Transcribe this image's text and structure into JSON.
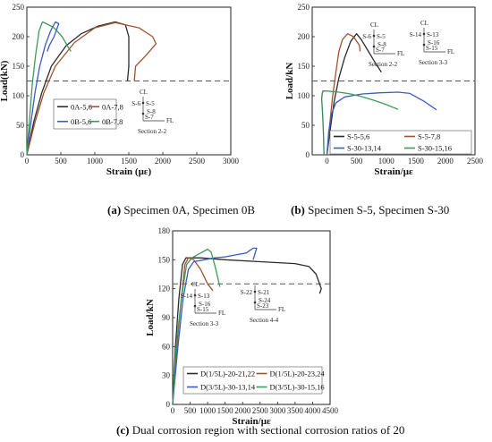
{
  "chart_data": [
    {
      "type": "line",
      "xlabel": "Strain (με)",
      "ylabel": "Load(kN)",
      "xlim": [
        0,
        3000
      ],
      "ylim": [
        0,
        250
      ],
      "xticks": [
        "0",
        "500",
        "1000",
        "1500",
        "2000",
        "2500",
        "3000"
      ],
      "yticks": [
        "0",
        "50",
        "100",
        "150",
        "200",
        "250"
      ],
      "reference_y": 125,
      "legend_position": "center",
      "caption_letter": "(a)",
      "caption_text": " Specimen 0A, Specimen 0B",
      "section": {
        "cl": "CL",
        "labels": [
          "S-6",
          "S-5",
          "S-8",
          "S-7"
        ],
        "fl": "FL",
        "title": "Section 2-2"
      },
      "series": [
        {
          "name": "0A-5,6",
          "color": "#2b2b2b",
          "points": [
            [
              0,
              0
            ],
            [
              100,
              55
            ],
            [
              220,
              105
            ],
            [
              360,
              150
            ],
            [
              580,
              185
            ],
            [
              800,
              205
            ],
            [
              1050,
              218
            ],
            [
              1300,
              225
            ],
            [
              1450,
              220
            ],
            [
              1500,
              200
            ],
            [
              1500,
              150
            ],
            [
              1480,
              125
            ]
          ]
        },
        {
          "name": "0A-7,8",
          "color": "#a0522d",
          "points": [
            [
              0,
              0
            ],
            [
              120,
              55
            ],
            [
              250,
              105
            ],
            [
              420,
              150
            ],
            [
              700,
              190
            ],
            [
              1000,
              215
            ],
            [
              1300,
              224
            ],
            [
              1650,
              215
            ],
            [
              1850,
              200
            ],
            [
              1900,
              188
            ],
            [
              1750,
              168
            ],
            [
              1600,
              150
            ],
            [
              1580,
              125
            ]
          ]
        },
        {
          "name": "0B-5,6",
          "color": "#3a5bc7",
          "points": [
            [
              0,
              0
            ],
            [
              60,
              55
            ],
            [
              120,
              105
            ],
            [
              190,
              150
            ],
            [
              270,
              185
            ],
            [
              350,
              210
            ],
            [
              420,
              225
            ],
            [
              470,
              222
            ],
            [
              400,
              200
            ],
            [
              330,
              185
            ],
            [
              300,
              175
            ]
          ]
        },
        {
          "name": "0B-7,8",
          "color": "#3f9a5a",
          "points": [
            [
              0,
              0
            ],
            [
              40,
              60
            ],
            [
              80,
              120
            ],
            [
              130,
              170
            ],
            [
              180,
              210
            ],
            [
              230,
              225
            ],
            [
              290,
              222
            ],
            [
              400,
              215
            ],
            [
              520,
              200
            ],
            [
              620,
              180
            ],
            [
              650,
              175
            ]
          ]
        }
      ]
    },
    {
      "type": "line",
      "xlabel": "Strain/με",
      "ylabel": "Load/kN",
      "xlim": [
        -250,
        2500
      ],
      "ylim": [
        0,
        250
      ],
      "xticks": [
        "0",
        "500",
        "1000",
        "1500",
        "2000",
        "2500"
      ],
      "yticks": [
        "0",
        "50",
        "100",
        "150",
        "200",
        "250"
      ],
      "reference_y": 125,
      "legend_position": "bottom",
      "caption_letter": "(b)",
      "caption_text": " Specimen S-5, Specimen S-30",
      "section_a": {
        "cl": "CL",
        "labels": [
          "S-6",
          "S-5",
          "S-8",
          "S-7"
        ],
        "fl": "FL",
        "title": "Section 2-2"
      },
      "section_b": {
        "cl": "CL",
        "labels": [
          "S-14",
          "S-13",
          "S-16",
          "S-15"
        ],
        "fl": "FL",
        "title": "Section 3-3"
      },
      "series": [
        {
          "name": "S-5-5,6",
          "color": "#2b2b2b",
          "points": [
            [
              0,
              0
            ],
            [
              50,
              40
            ],
            [
              120,
              90
            ],
            [
              200,
              130
            ],
            [
              300,
              165
            ],
            [
              400,
              192
            ],
            [
              500,
              205
            ],
            [
              580,
              195
            ],
            [
              700,
              175
            ],
            [
              820,
              155
            ],
            [
              920,
              140
            ]
          ]
        },
        {
          "name": "S-5-7,8",
          "color": "#a0522d",
          "points": [
            [
              0,
              0
            ],
            [
              40,
              45
            ],
            [
              90,
              95
            ],
            [
              150,
              140
            ],
            [
              200,
              175
            ],
            [
              260,
              195
            ],
            [
              350,
              205
            ],
            [
              450,
              200
            ],
            [
              550,
              185
            ],
            [
              560,
              175
            ]
          ]
        },
        {
          "name": "S-30-13,14",
          "color": "#3a5bc7",
          "points": [
            [
              0,
              0
            ],
            [
              30,
              40
            ],
            [
              80,
              70
            ],
            [
              150,
              88
            ],
            [
              300,
              98
            ],
            [
              600,
              103
            ],
            [
              900,
              105
            ],
            [
              1200,
              106
            ],
            [
              1400,
              104
            ],
            [
              1650,
              90
            ],
            [
              1850,
              76
            ]
          ]
        },
        {
          "name": "S-30-15,16",
          "color": "#3f9a5a",
          "points": [
            [
              -80,
              108
            ],
            [
              0,
              108
            ],
            [
              200,
              106
            ],
            [
              400,
              103
            ],
            [
              600,
              98
            ],
            [
              800,
              92
            ],
            [
              1000,
              85
            ],
            [
              1200,
              77
            ]
          ]
        },
        {
          "name": "",
          "color": "#2e8b57",
          "points": [
            [
              -50,
              0
            ],
            [
              -60,
              35
            ],
            [
              -75,
              70
            ],
            [
              -90,
              95
            ],
            [
              -80,
              105
            ],
            [
              -60,
              108
            ]
          ]
        }
      ]
    },
    {
      "type": "line",
      "xlabel": "Strain/με",
      "ylabel": "Load/kN",
      "xlim": [
        0,
        4500
      ],
      "ylim": [
        0,
        180
      ],
      "xticks": [
        "0",
        "500",
        "1000",
        "1500",
        "2000",
        "2500",
        "3000",
        "3500",
        "4000",
        "4500"
      ],
      "yticks": [
        "0",
        "30",
        "60",
        "90",
        "120",
        "150",
        "180"
      ],
      "reference_y": 125,
      "legend_position": "bottom",
      "caption_letter": "(c)",
      "caption_text": " Dual corrosion region with sectional corrosion ratios of 20",
      "section_a": {
        "cl": "CL",
        "labels": [
          "S-14",
          "S-13",
          "S-16",
          "S-15"
        ],
        "fl": "FL",
        "title": "Section 3-3"
      },
      "section_b": {
        "cl": "",
        "labels": [
          "S-22",
          "S-21",
          "S-24",
          "S-23"
        ],
        "fl": "FL",
        "title": "Section 4-4"
      },
      "series": [
        {
          "name": "D(1/5L)-20-21,22",
          "color": "#2b2b2b",
          "points": [
            [
              0,
              0
            ],
            [
              80,
              60
            ],
            [
              180,
              110
            ],
            [
              280,
              145
            ],
            [
              380,
              152
            ],
            [
              800,
              152
            ],
            [
              1500,
              150
            ],
            [
              2500,
              148
            ],
            [
              3500,
              146
            ],
            [
              3900,
              143
            ],
            [
              4100,
              135
            ],
            [
              4250,
              120
            ],
            [
              4200,
              115
            ]
          ]
        },
        {
          "name": "D(1/5L)-20-23,24",
          "color": "#a0522d",
          "points": [
            [
              0,
              0
            ],
            [
              120,
              60
            ],
            [
              250,
              110
            ],
            [
              350,
              145
            ],
            [
              450,
              152
            ],
            [
              600,
              150
            ],
            [
              800,
              140
            ],
            [
              1000,
              125
            ],
            [
              1150,
              118
            ]
          ]
        },
        {
          "name": "D(3/5L)-30-13,14",
          "color": "#3a5bc7",
          "points": [
            [
              0,
              0
            ],
            [
              150,
              60
            ],
            [
              300,
              110
            ],
            [
              450,
              140
            ],
            [
              600,
              148
            ],
            [
              900,
              150
            ],
            [
              1200,
              152
            ],
            [
              1500,
              153
            ],
            [
              1800,
              155
            ],
            [
              2100,
              157
            ],
            [
              2300,
              162
            ],
            [
              2400,
              162
            ],
            [
              2300,
              150
            ]
          ]
        },
        {
          "name": "D(3/5L)-30-15,16",
          "color": "#3f9a5a",
          "points": [
            [
              0,
              0
            ],
            [
              100,
              60
            ],
            [
              250,
              110
            ],
            [
              400,
              145
            ],
            [
              550,
              152
            ],
            [
              800,
              157
            ],
            [
              1000,
              161
            ],
            [
              1100,
              158
            ],
            [
              1200,
              145
            ],
            [
              1300,
              130
            ],
            [
              1350,
              122
            ]
          ]
        }
      ]
    }
  ]
}
